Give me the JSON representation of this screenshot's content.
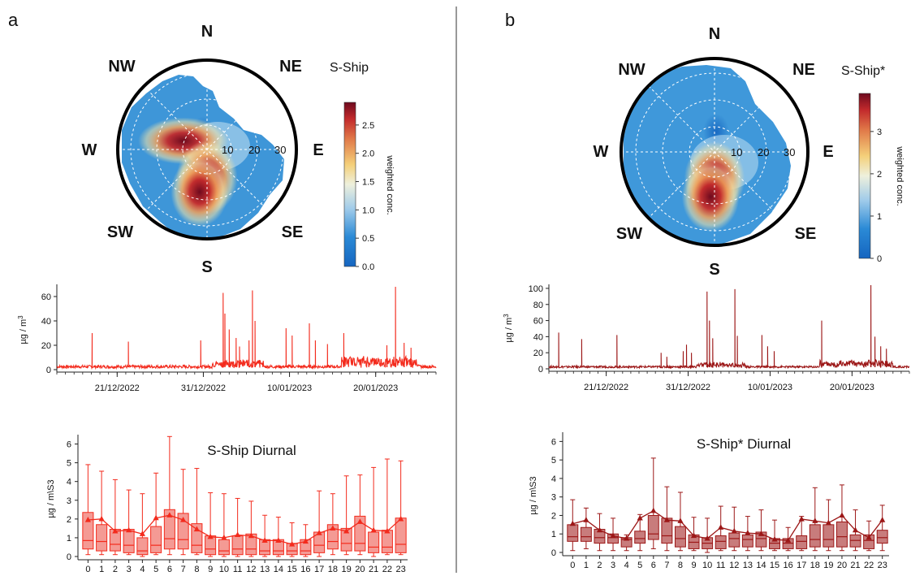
{
  "panels": [
    {
      "letter": "a",
      "color": "#f32b1d",
      "polar": {
        "title": "S-Ship",
        "directions": [
          "N",
          "NE",
          "E",
          "SE",
          "S",
          "SW",
          "W",
          "NW"
        ],
        "ring_labels": [
          "10",
          "20",
          "30"
        ],
        "colorbar": {
          "label": "weighted conc.",
          "ticks": [
            "0.0",
            "0.5",
            "1.0",
            "1.5",
            "2.0",
            "2.5"
          ],
          "max": 2.9
        },
        "hotspots": [
          {
            "bearing_deg": 290,
            "speed": 10,
            "value": 2.6
          },
          {
            "bearing_deg": 180,
            "speed": 11,
            "value": 2.8
          },
          {
            "bearing_deg": 190,
            "speed": 17,
            "value": 2.4
          }
        ]
      },
      "timeseries": {
        "ylabel": "µg / m",
        "ylabel_sup": "3",
        "ylim": [
          0,
          70
        ],
        "yticks": [
          "0",
          "20",
          "40",
          "60"
        ],
        "xticks": [
          "21/12/2022",
          "31/12/2022",
          "10/01/2023",
          "20/01/2023"
        ],
        "days": 44,
        "start_date": "14/12/2022",
        "peaks": [
          {
            "day": 4.1,
            "value": 30
          },
          {
            "day": 8.3,
            "value": 23
          },
          {
            "day": 16.7,
            "value": 24
          },
          {
            "day": 19.3,
            "value": 63
          },
          {
            "day": 19.5,
            "value": 46
          },
          {
            "day": 20.0,
            "value": 33
          },
          {
            "day": 20.8,
            "value": 26
          },
          {
            "day": 21.2,
            "value": 19
          },
          {
            "day": 22.3,
            "value": 24
          },
          {
            "day": 22.7,
            "value": 65
          },
          {
            "day": 23.0,
            "value": 40
          },
          {
            "day": 26.6,
            "value": 34
          },
          {
            "day": 27.3,
            "value": 28
          },
          {
            "day": 29.3,
            "value": 38
          },
          {
            "day": 30.0,
            "value": 24
          },
          {
            "day": 31.4,
            "value": 21
          },
          {
            "day": 33.3,
            "value": 30
          },
          {
            "day": 39.3,
            "value": 68
          },
          {
            "day": 38.3,
            "value": 20
          },
          {
            "day": 40.3,
            "value": 22
          },
          {
            "day": 41.1,
            "value": 18
          }
        ]
      },
      "diurnal": {
        "title": "S-Ship Diurnal",
        "ylabel": "µg / m\\S3",
        "ylim": [
          0,
          6.5
        ],
        "yticks": [
          "0",
          "1",
          "2",
          "3",
          "4",
          "5",
          "6"
        ],
        "hours": [
          "0",
          "1",
          "2",
          "3",
          "4",
          "5",
          "6",
          "7",
          "8",
          "9",
          "10",
          "11",
          "12",
          "13",
          "14",
          "15",
          "16",
          "17",
          "18",
          "19",
          "20",
          "21",
          "22",
          "23"
        ],
        "whisker_low": [
          0.1,
          0.1,
          0.1,
          0.1,
          0.0,
          0.1,
          0.1,
          0.1,
          0.1,
          0.0,
          0.0,
          0.0,
          0.0,
          0.0,
          0.0,
          0.0,
          0.0,
          0.0,
          0.1,
          0.1,
          0.1,
          0.0,
          0.1,
          0.1
        ],
        "q1": [
          0.4,
          0.3,
          0.3,
          0.2,
          0.1,
          0.2,
          0.4,
          0.4,
          0.2,
          0.1,
          0.1,
          0.1,
          0.1,
          0.1,
          0.1,
          0.1,
          0.1,
          0.2,
          0.4,
          0.3,
          0.3,
          0.2,
          0.2,
          0.2
        ],
        "median": [
          0.85,
          0.8,
          0.65,
          0.6,
          0.3,
          0.6,
          0.95,
          0.9,
          0.6,
          0.4,
          0.3,
          0.4,
          0.4,
          0.3,
          0.3,
          0.3,
          0.3,
          0.6,
          0.8,
          0.7,
          0.7,
          0.5,
          0.5,
          0.65
        ],
        "q3": [
          2.35,
          1.7,
          1.45,
          1.45,
          1.0,
          1.6,
          2.5,
          2.3,
          1.75,
          1.1,
          0.9,
          1.1,
          1.2,
          0.9,
          0.9,
          0.7,
          0.9,
          1.3,
          1.7,
          1.5,
          2.15,
          1.3,
          1.4,
          2.05
        ],
        "whisker_high": [
          4.9,
          4.55,
          4.1,
          3.55,
          3.35,
          4.45,
          6.4,
          4.65,
          4.7,
          3.4,
          3.35,
          3.1,
          2.95,
          2.2,
          2.1,
          1.8,
          1.7,
          3.5,
          3.35,
          4.3,
          4.35,
          4.75,
          5.2,
          5.1
        ],
        "mean": [
          1.95,
          2.0,
          1.35,
          1.4,
          1.2,
          2.05,
          2.2,
          1.95,
          1.45,
          1.05,
          1.0,
          1.15,
          1.1,
          0.85,
          0.85,
          0.65,
          0.8,
          1.25,
          1.5,
          1.35,
          1.85,
          1.4,
          1.35,
          2.0
        ]
      }
    },
    {
      "letter": "b",
      "color": "#9c1717",
      "polar": {
        "title": "S-Ship*",
        "directions": [
          "N",
          "NE",
          "E",
          "SE",
          "S",
          "SW",
          "W",
          "NW"
        ],
        "ring_labels": [
          "10",
          "20",
          "30"
        ],
        "colorbar": {
          "label": "weighted conc.",
          "ticks": [
            "0",
            "1",
            "2",
            "3"
          ],
          "max": 3.9
        },
        "hotspots": [
          {
            "bearing_deg": 180,
            "speed": 10,
            "value": 3.7
          },
          {
            "bearing_deg": 185,
            "speed": 17,
            "value": 3.2
          }
        ]
      },
      "timeseries": {
        "ylabel": "µg / m",
        "ylabel_sup": "3",
        "ylim": [
          0,
          105
        ],
        "yticks": [
          "0",
          "20",
          "40",
          "60",
          "80",
          "100"
        ],
        "xticks": [
          "21/12/2022",
          "31/12/2022",
          "10/01/2023",
          "20/01/2023"
        ],
        "days": 44,
        "start_date": "14/12/2022",
        "peaks": [
          {
            "day": 1.2,
            "value": 45
          },
          {
            "day": 4.0,
            "value": 37
          },
          {
            "day": 8.3,
            "value": 42
          },
          {
            "day": 13.7,
            "value": 20
          },
          {
            "day": 14.4,
            "value": 15
          },
          {
            "day": 16.4,
            "value": 22
          },
          {
            "day": 16.8,
            "value": 30
          },
          {
            "day": 17.4,
            "value": 20
          },
          {
            "day": 19.3,
            "value": 96
          },
          {
            "day": 19.6,
            "value": 60
          },
          {
            "day": 20.0,
            "value": 38
          },
          {
            "day": 22.7,
            "value": 99
          },
          {
            "day": 23.0,
            "value": 41
          },
          {
            "day": 26.0,
            "value": 42
          },
          {
            "day": 26.7,
            "value": 28
          },
          {
            "day": 27.5,
            "value": 22
          },
          {
            "day": 33.3,
            "value": 60
          },
          {
            "day": 39.3,
            "value": 104
          },
          {
            "day": 39.8,
            "value": 40
          },
          {
            "day": 40.5,
            "value": 28
          },
          {
            "day": 41.2,
            "value": 25
          }
        ]
      },
      "diurnal": {
        "title": "S-Ship* Diurnal",
        "ylabel": "µg / m\\S3",
        "ylim": [
          0,
          6.5
        ],
        "yticks": [
          "0",
          "1",
          "2",
          "3",
          "4",
          "5",
          "6"
        ],
        "hours": [
          "0",
          "1",
          "2",
          "3",
          "4",
          "5",
          "6",
          "7",
          "8",
          "9",
          "10",
          "11",
          "12",
          "13",
          "14",
          "15",
          "16",
          "17",
          "18",
          "19",
          "20",
          "21",
          "22",
          "23"
        ],
        "whisker_low": [
          0.1,
          0.2,
          0.1,
          0.1,
          0.1,
          0.1,
          0.2,
          0.1,
          0.1,
          0.1,
          0.0,
          0.1,
          0.1,
          0.1,
          0.1,
          0.1,
          0.1,
          0.1,
          0.1,
          0.1,
          0.1,
          0.1,
          0.1,
          0.1
        ],
        "q1": [
          0.6,
          0.6,
          0.5,
          0.5,
          0.3,
          0.5,
          0.7,
          0.5,
          0.3,
          0.2,
          0.2,
          0.2,
          0.3,
          0.3,
          0.3,
          0.2,
          0.2,
          0.2,
          0.3,
          0.3,
          0.3,
          0.3,
          0.2,
          0.5
        ],
        "median": [
          0.85,
          0.85,
          0.8,
          0.8,
          0.7,
          0.75,
          1.0,
          0.9,
          0.75,
          0.55,
          0.5,
          0.6,
          0.75,
          0.7,
          0.75,
          0.5,
          0.5,
          0.6,
          0.7,
          0.7,
          0.85,
          0.65,
          0.65,
          0.8
        ],
        "q3": [
          1.5,
          1.35,
          1.25,
          1.0,
          0.8,
          1.15,
          2.0,
          1.85,
          1.4,
          0.95,
          0.8,
          0.9,
          1.05,
          0.95,
          1.1,
          0.75,
          0.75,
          0.9,
          1.5,
          1.5,
          1.65,
          0.95,
          0.95,
          1.2
        ],
        "whisker_high": [
          2.85,
          2.4,
          2.1,
          1.85,
          0.95,
          2.05,
          5.1,
          3.55,
          3.25,
          1.9,
          1.85,
          2.5,
          2.45,
          1.95,
          2.3,
          1.75,
          1.35,
          1.95,
          3.5,
          2.85,
          3.65,
          2.3,
          1.7,
          2.55
        ],
        "mean": [
          1.55,
          1.75,
          1.2,
          0.9,
          0.75,
          1.85,
          2.25,
          1.75,
          1.7,
          0.9,
          0.75,
          1.35,
          1.15,
          1.05,
          1.0,
          0.7,
          0.65,
          1.8,
          1.7,
          1.6,
          2.0,
          1.2,
          0.8,
          1.75
        ]
      }
    }
  ],
  "chart_data": [
    {
      "type": "heatmap",
      "title": "S-Ship",
      "description_axes": "polar plot, angle = wind direction, radius = wind speed",
      "ring_labels": [
        "10",
        "20",
        "30"
      ],
      "colorbar_label": "weighted conc.",
      "colorbar_range": [
        0,
        2.9
      ],
      "hotspots": [
        {
          "direction": "WNW",
          "speed": 10,
          "value": 2.6
        },
        {
          "direction": "S",
          "speed": 11,
          "value": 2.8
        },
        {
          "direction": "S",
          "speed": 17,
          "value": 2.4
        }
      ]
    },
    {
      "type": "line",
      "ylabel": "µg / m3",
      "ylim": [
        0,
        70
      ],
      "x_ticks": [
        "21/12/2022",
        "31/12/2022",
        "10/01/2023",
        "20/01/2023"
      ],
      "series": [
        {
          "name": "S-Ship",
          "peaks_day_value": [
            [
              4.1,
              30
            ],
            [
              8.3,
              23
            ],
            [
              16.7,
              24
            ],
            [
              19.3,
              63
            ],
            [
              22.7,
              65
            ],
            [
              29.3,
              38
            ],
            [
              33.3,
              30
            ],
            [
              39.3,
              68
            ]
          ]
        }
      ]
    },
    {
      "type": "bar",
      "title": "S-Ship Diurnal",
      "ylabel": "µg / m\\S3",
      "ylim": [
        0,
        6.5
      ],
      "categories": [
        "0",
        "1",
        "2",
        "3",
        "4",
        "5",
        "6",
        "7",
        "8",
        "9",
        "10",
        "11",
        "12",
        "13",
        "14",
        "15",
        "16",
        "17",
        "18",
        "19",
        "20",
        "21",
        "22",
        "23"
      ],
      "series": [
        {
          "name": "median",
          "values": [
            0.85,
            0.8,
            0.65,
            0.6,
            0.3,
            0.6,
            0.95,
            0.9,
            0.6,
            0.4,
            0.3,
            0.4,
            0.4,
            0.3,
            0.3,
            0.3,
            0.3,
            0.6,
            0.8,
            0.7,
            0.7,
            0.5,
            0.5,
            0.65
          ]
        },
        {
          "name": "mean",
          "values": [
            1.95,
            2.0,
            1.35,
            1.4,
            1.2,
            2.05,
            2.2,
            1.95,
            1.45,
            1.05,
            1.0,
            1.15,
            1.1,
            0.85,
            0.85,
            0.65,
            0.8,
            1.25,
            1.5,
            1.35,
            1.85,
            1.4,
            1.35,
            2.0
          ]
        }
      ]
    },
    {
      "type": "heatmap",
      "title": "S-Ship*",
      "ring_labels": [
        "10",
        "20",
        "30"
      ],
      "colorbar_label": "weighted conc.",
      "colorbar_range": [
        0,
        3.9
      ],
      "hotspots": [
        {
          "direction": "S",
          "speed": 10,
          "value": 3.7
        },
        {
          "direction": "S",
          "speed": 17,
          "value": 3.2
        }
      ]
    },
    {
      "type": "line",
      "ylabel": "µg / m3",
      "ylim": [
        0,
        105
      ],
      "x_ticks": [
        "21/12/2022",
        "31/12/2022",
        "10/01/2023",
        "20/01/2023"
      ],
      "series": [
        {
          "name": "S-Ship*",
          "peaks_day_value": [
            [
              1.2,
              45
            ],
            [
              4.0,
              37
            ],
            [
              8.3,
              42
            ],
            [
              19.3,
              96
            ],
            [
              22.7,
              99
            ],
            [
              26.0,
              42
            ],
            [
              33.3,
              60
            ],
            [
              39.3,
              104
            ]
          ]
        }
      ]
    },
    {
      "type": "bar",
      "title": "S-Ship* Diurnal",
      "ylabel": "µg / m\\S3",
      "ylim": [
        0,
        6.5
      ],
      "categories": [
        "0",
        "1",
        "2",
        "3",
        "4",
        "5",
        "6",
        "7",
        "8",
        "9",
        "10",
        "11",
        "12",
        "13",
        "14",
        "15",
        "16",
        "17",
        "18",
        "19",
        "20",
        "21",
        "22",
        "23"
      ],
      "series": [
        {
          "name": "median",
          "values": [
            0.85,
            0.85,
            0.8,
            0.8,
            0.7,
            0.75,
            1.0,
            0.9,
            0.75,
            0.55,
            0.5,
            0.6,
            0.75,
            0.7,
            0.75,
            0.5,
            0.5,
            0.6,
            0.7,
            0.7,
            0.85,
            0.65,
            0.65,
            0.8
          ]
        },
        {
          "name": "mean",
          "values": [
            1.55,
            1.75,
            1.2,
            0.9,
            0.75,
            1.85,
            2.25,
            1.75,
            1.7,
            0.9,
            0.75,
            1.35,
            1.15,
            1.05,
            1.0,
            0.7,
            0.65,
            1.8,
            1.7,
            1.6,
            2.0,
            1.2,
            0.8,
            1.75
          ]
        }
      ]
    }
  ]
}
